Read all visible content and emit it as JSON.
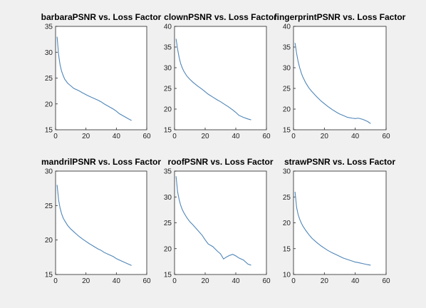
{
  "figure": {
    "background": "#f0f0f0",
    "line_color": "#4f86b8"
  },
  "chart_data": [
    {
      "type": "line",
      "title": "barbaraPSNR vs. Loss Factor",
      "xlabel": "",
      "ylabel": "",
      "xlim": [
        0,
        60
      ],
      "ylim": [
        15,
        35
      ],
      "xticks": [
        0,
        20,
        40,
        60
      ],
      "yticks": [
        15,
        20,
        25,
        30,
        35
      ],
      "grid": false,
      "x": [
        1,
        2,
        3,
        4,
        5,
        6,
        8,
        10,
        12,
        15,
        18,
        20,
        22,
        25,
        28,
        30,
        32,
        35,
        38,
        40,
        42,
        45,
        48,
        50
      ],
      "y": [
        33,
        29.5,
        27.5,
        26.3,
        25.5,
        24.8,
        24.0,
        23.5,
        23.0,
        22.6,
        22.1,
        21.8,
        21.5,
        21.1,
        20.7,
        20.4,
        20.0,
        19.5,
        19.0,
        18.6,
        18.1,
        17.6,
        17.1,
        16.8
      ]
    },
    {
      "type": "line",
      "title": "clownPSNR vs. Loss Factor",
      "xlabel": "",
      "ylabel": "",
      "xlim": [
        0,
        60
      ],
      "ylim": [
        15,
        40
      ],
      "xticks": [
        0,
        20,
        40,
        60
      ],
      "yticks": [
        15,
        20,
        25,
        30,
        35,
        40
      ],
      "grid": false,
      "x": [
        1,
        2,
        3,
        4,
        5,
        6,
        8,
        10,
        12,
        15,
        18,
        20,
        22,
        25,
        28,
        30,
        32,
        35,
        38,
        40,
        42,
        45,
        48,
        50
      ],
      "y": [
        37,
        34.5,
        32.5,
        31.0,
        30.0,
        29.2,
        28.0,
        27.2,
        26.5,
        25.6,
        24.8,
        24.2,
        23.6,
        22.9,
        22.2,
        21.8,
        21.3,
        20.6,
        19.8,
        19.2,
        18.5,
        18.0,
        17.6,
        17.4
      ]
    },
    {
      "type": "line",
      "title": "fingerprintPSNR vs. Loss Factor",
      "xlabel": "",
      "ylabel": "",
      "xlim": [
        0,
        60
      ],
      "ylim": [
        15,
        40
      ],
      "xticks": [
        0,
        20,
        40,
        60
      ],
      "yticks": [
        15,
        20,
        25,
        30,
        35,
        40
      ],
      "grid": false,
      "x": [
        1,
        2,
        3,
        4,
        5,
        6,
        8,
        10,
        12,
        15,
        18,
        20,
        22,
        25,
        28,
        30,
        32,
        35,
        38,
        40,
        42,
        45,
        48,
        50
      ],
      "y": [
        36,
        33.5,
        31.5,
        30.0,
        28.8,
        27.8,
        26.3,
        25.1,
        24.2,
        23.0,
        21.9,
        21.3,
        20.7,
        19.9,
        19.2,
        18.8,
        18.5,
        18.0,
        17.8,
        17.7,
        17.8,
        17.5,
        17.0,
        16.5
      ]
    },
    {
      "type": "line",
      "title": "mandrilPSNR vs. Loss Factor",
      "xlabel": "",
      "ylabel": "",
      "xlim": [
        0,
        60
      ],
      "ylim": [
        15,
        30
      ],
      "xticks": [
        0,
        20,
        40,
        60
      ],
      "yticks": [
        15,
        20,
        25,
        30
      ],
      "grid": false,
      "x": [
        1,
        2,
        3,
        4,
        5,
        6,
        8,
        10,
        12,
        15,
        18,
        20,
        22,
        25,
        28,
        30,
        32,
        35,
        38,
        40,
        42,
        45,
        48,
        50
      ],
      "y": [
        28,
        25.8,
        24.6,
        23.8,
        23.2,
        22.8,
        22.1,
        21.6,
        21.2,
        20.6,
        20.1,
        19.8,
        19.5,
        19.1,
        18.7,
        18.5,
        18.2,
        17.9,
        17.6,
        17.3,
        17.1,
        16.8,
        16.5,
        16.3
      ]
    },
    {
      "type": "line",
      "title": "roofPSNR vs. Loss Factor",
      "xlabel": "",
      "ylabel": "",
      "xlim": [
        0,
        60
      ],
      "ylim": [
        15,
        35
      ],
      "xticks": [
        0,
        20,
        40,
        60
      ],
      "yticks": [
        15,
        20,
        25,
        30,
        35
      ],
      "grid": false,
      "x": [
        1,
        2,
        3,
        4,
        5,
        6,
        8,
        10,
        12,
        15,
        18,
        20,
        22,
        25,
        28,
        30,
        32,
        34,
        36,
        38,
        40,
        42,
        45,
        48,
        50
      ],
      "y": [
        34,
        31.0,
        29.5,
        28.4,
        27.6,
        27.0,
        26.0,
        25.2,
        24.6,
        23.6,
        22.6,
        21.7,
        20.9,
        20.4,
        19.5,
        19.0,
        18.0,
        18.4,
        18.7,
        18.9,
        18.6,
        18.2,
        17.8,
        17.0,
        16.8
      ]
    },
    {
      "type": "line",
      "title": "strawPSNR vs. Loss Factor",
      "xlabel": "",
      "ylabel": "",
      "xlim": [
        0,
        60
      ],
      "ylim": [
        10,
        30
      ],
      "xticks": [
        0,
        20,
        40,
        60
      ],
      "yticks": [
        10,
        15,
        20,
        25,
        30
      ],
      "grid": false,
      "x": [
        1,
        2,
        3,
        4,
        5,
        6,
        8,
        10,
        12,
        15,
        18,
        20,
        22,
        25,
        28,
        30,
        32,
        35,
        38,
        40,
        42,
        45,
        48,
        50
      ],
      "y": [
        26,
        23.0,
        21.6,
        20.7,
        20.0,
        19.4,
        18.5,
        17.7,
        17.0,
        16.2,
        15.5,
        15.1,
        14.7,
        14.2,
        13.8,
        13.5,
        13.2,
        12.9,
        12.6,
        12.4,
        12.3,
        12.1,
        11.9,
        11.8
      ]
    }
  ]
}
